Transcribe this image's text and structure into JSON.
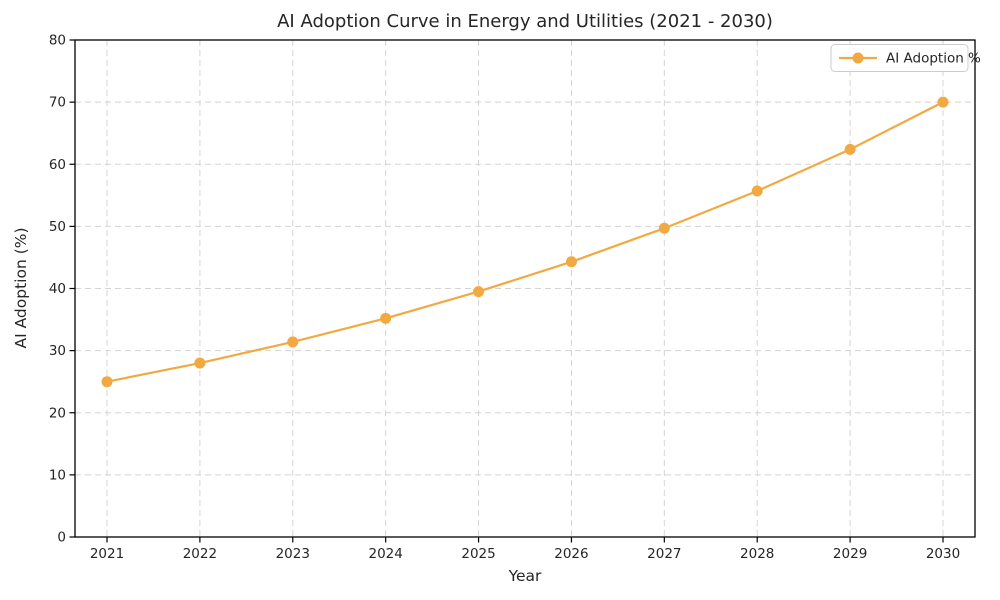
{
  "chart": {
    "colors": {
      "line": "#f2a942",
      "grid": "#d4d4d4",
      "spine": "#000000",
      "text": "#262626",
      "legend_border": "#cccccc",
      "background": "#ffffff"
    }
  },
  "chart_data": {
    "type": "line",
    "title": "AI Adoption Curve in Energy and Utilities (2021 - 2030)",
    "xlabel": "Year",
    "ylabel": "AI Adoption (%)",
    "x": [
      2021,
      2022,
      2023,
      2024,
      2025,
      2026,
      2027,
      2028,
      2029,
      2030
    ],
    "series": [
      {
        "name": "AI Adoption %",
        "values": [
          25.0,
          28.0,
          31.4,
          35.2,
          39.5,
          44.3,
          49.7,
          55.7,
          62.4,
          70.0
        ]
      }
    ],
    "ylim": [
      0,
      80
    ],
    "yticks": [
      0,
      10,
      20,
      30,
      40,
      50,
      60,
      70,
      80
    ],
    "grid": "dashed-both",
    "marker": "circle",
    "legend_position": "upper-right"
  }
}
